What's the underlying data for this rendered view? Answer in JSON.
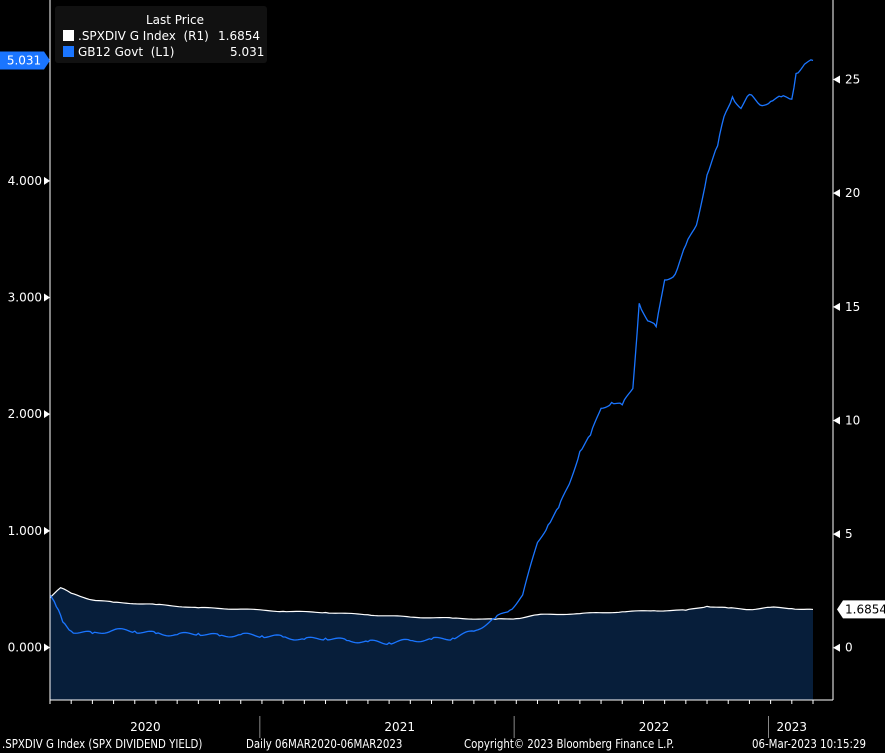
{
  "chart_data": {
    "type": "line",
    "title": "Last Price",
    "legend": [
      {
        "name": ".SPXDIV G Index",
        "axis": "(R1)",
        "last": "1.6854",
        "color": "#ffffff"
      },
      {
        "name": "GB12 Govt",
        "axis": "(L1)",
        "last": "5.031",
        "color": "#1a75ff"
      }
    ],
    "x_unit": "months since 06MAR2020",
    "x_range": [
      0,
      36
    ],
    "x_year_labels": [
      {
        "label": "2020",
        "m": 4.5
      },
      {
        "label": "2021",
        "m": 16.5
      },
      {
        "label": "2022",
        "m": 28.5
      },
      {
        "label": "2023",
        "m": 35
      }
    ],
    "x_year_separators": [
      9.9,
      21.9,
      33.9
    ],
    "left_axis": {
      "ticks": [
        "0.000",
        "1.000",
        "2.000",
        "3.000",
        "4.000"
      ],
      "tick_values": [
        0,
        1,
        2,
        3,
        4
      ],
      "ylim": [
        -0.45,
        5.55
      ]
    },
    "right_axis": {
      "ticks": [
        "0",
        "5",
        "10",
        "15",
        "20",
        "25"
      ],
      "tick_values": [
        0,
        5,
        10,
        15,
        20,
        25
      ],
      "ylim": [
        -2.3,
        28.5
      ]
    },
    "series": [
      {
        "name": "GB12 Govt",
        "axis": "left",
        "color": "#1a75ff",
        "points": [
          [
            0,
            0.45
          ],
          [
            0.3,
            0.35
          ],
          [
            0.6,
            0.22
          ],
          [
            1,
            0.14
          ],
          [
            2,
            0.12
          ],
          [
            3,
            0.15
          ],
          [
            4,
            0.14
          ],
          [
            5,
            0.12
          ],
          [
            6,
            0.11
          ],
          [
            7,
            0.12
          ],
          [
            8,
            0.1
          ],
          [
            9,
            0.11
          ],
          [
            10,
            0.1
          ],
          [
            11,
            0.09
          ],
          [
            12,
            0.07
          ],
          [
            13,
            0.08
          ],
          [
            14,
            0.06
          ],
          [
            15,
            0.05
          ],
          [
            16,
            0.04
          ],
          [
            17,
            0.06
          ],
          [
            18,
            0.07
          ],
          [
            19,
            0.08
          ],
          [
            20,
            0.14
          ],
          [
            21,
            0.25
          ],
          [
            21.7,
            0.32
          ],
          [
            22.3,
            0.45
          ],
          [
            23,
            0.9
          ],
          [
            23.5,
            1.05
          ],
          [
            24,
            1.2
          ],
          [
            24.5,
            1.4
          ],
          [
            25,
            1.68
          ],
          [
            25.5,
            1.82
          ],
          [
            26,
            2.05
          ],
          [
            26.5,
            2.1
          ],
          [
            27,
            2.08
          ],
          [
            27.5,
            2.22
          ],
          [
            27.8,
            2.95
          ],
          [
            28.2,
            2.8
          ],
          [
            28.6,
            2.75
          ],
          [
            29,
            3.15
          ],
          [
            29.5,
            3.2
          ],
          [
            30,
            3.45
          ],
          [
            30.5,
            3.62
          ],
          [
            31,
            4.05
          ],
          [
            31.5,
            4.3
          ],
          [
            31.8,
            4.55
          ],
          [
            32.2,
            4.72
          ],
          [
            32.6,
            4.62
          ],
          [
            33,
            4.74
          ],
          [
            33.5,
            4.65
          ],
          [
            34,
            4.68
          ],
          [
            34.5,
            4.72
          ],
          [
            35,
            4.7
          ],
          [
            35.2,
            4.92
          ],
          [
            35.6,
            5.0
          ],
          [
            36,
            5.031
          ]
        ]
      },
      {
        "name": ".SPXDIV G Index",
        "axis": "right",
        "color": "#ffffff",
        "fill": "#071e3a",
        "points": [
          [
            0,
            2.2
          ],
          [
            0.5,
            2.64
          ],
          [
            1,
            2.4
          ],
          [
            2,
            2.1
          ],
          [
            3,
            2.0
          ],
          [
            5,
            1.9
          ],
          [
            7,
            1.76
          ],
          [
            9,
            1.7
          ],
          [
            11,
            1.6
          ],
          [
            13,
            1.55
          ],
          [
            15,
            1.45
          ],
          [
            17,
            1.35
          ],
          [
            19,
            1.3
          ],
          [
            21,
            1.25
          ],
          [
            22,
            1.28
          ],
          [
            23,
            1.45
          ],
          [
            25,
            1.5
          ],
          [
            27,
            1.58
          ],
          [
            28.5,
            1.63
          ],
          [
            30,
            1.65
          ],
          [
            31,
            1.82
          ],
          [
            32,
            1.75
          ],
          [
            33,
            1.68
          ],
          [
            34,
            1.78
          ],
          [
            35,
            1.72
          ],
          [
            36,
            1.6854
          ]
        ]
      }
    ],
    "last_value_labels": {
      "left": "5.031",
      "right": "1.6854"
    }
  },
  "footer": {
    "security": ".SPXDIV G Index (SPX DIVIDEND YIELD)",
    "range": "Daily 06MAR2020-06MAR2023",
    "copyright": "Copyright© 2023 Bloomberg Finance L.P.",
    "timestamp": "06-Mar-2023 10:15:29"
  }
}
